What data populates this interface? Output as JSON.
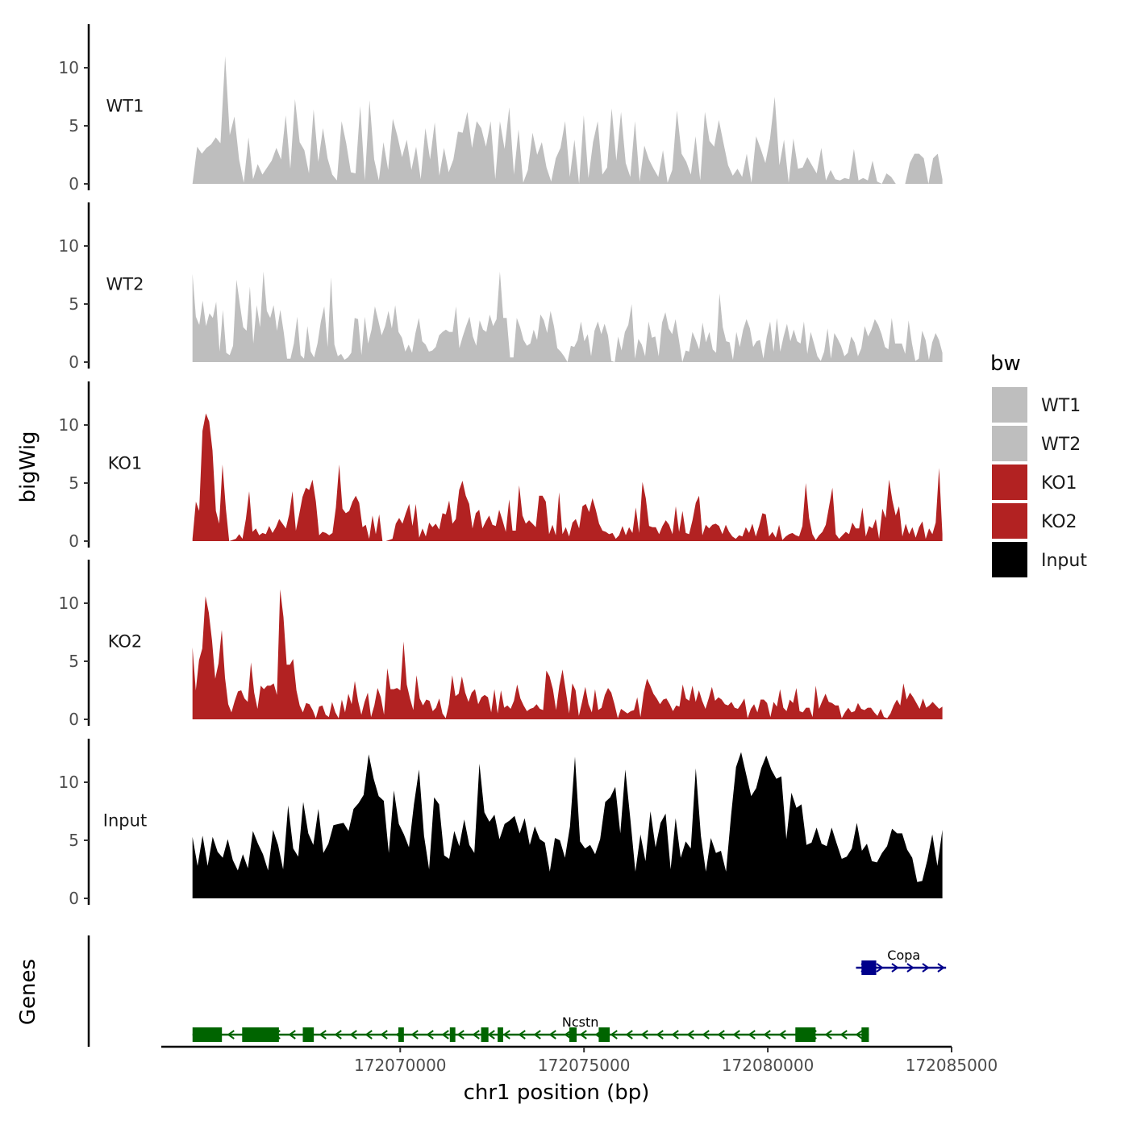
{
  "chart_data": {
    "type": "area",
    "ylabel": "bigWig",
    "xlabel": "chr1 position (bp)",
    "genes_label": "Genes",
    "xlim": [
      172063500,
      172085000
    ],
    "x_ticks": [
      {
        "value": 172070000,
        "label": "172070000"
      },
      {
        "value": 172075000,
        "label": "172075000"
      },
      {
        "value": 172080000,
        "label": "172080000"
      },
      {
        "value": 172085000,
        "label": "172085000"
      }
    ],
    "ylim": [
      0,
      13.5
    ],
    "y_ticks": [
      {
        "value": 0,
        "label": "0"
      },
      {
        "value": 5,
        "label": "5"
      },
      {
        "value": 10,
        "label": "10"
      }
    ],
    "legend": {
      "title": "bw",
      "entries": [
        {
          "label": "WT1",
          "color": "#bebebe"
        },
        {
          "label": "WT2",
          "color": "#bebebe"
        },
        {
          "label": "KO1",
          "color": "#b22222"
        },
        {
          "label": "KO2",
          "color": "#b22222"
        },
        {
          "label": "Input",
          "color": "#000000"
        }
      ]
    },
    "x_start": 172064350,
    "x_end": 172084750,
    "series": [
      {
        "name": "WT1",
        "color": "#bebebe",
        "values": [
          0,
          3.2,
          2.6,
          3.1,
          3.4,
          4,
          3.5,
          11,
          4.2,
          5.8,
          2.1,
          0.1,
          4,
          0.4,
          1.7,
          0.8,
          1.4,
          2,
          3.1,
          2.1,
          5.9,
          1.3,
          7.3,
          3.6,
          2.9,
          0.9,
          6.4,
          1.9,
          4.8,
          2.2,
          0.8,
          0.3,
          5.4,
          3.5,
          1,
          0.9,
          6.7,
          0.3,
          7.2,
          2.1,
          0.3,
          3.6,
          1.2,
          5.6,
          4.1,
          2.3,
          3.8,
          1.2,
          3.2,
          0.4,
          4.8,
          2.1,
          5.3,
          0.7,
          3.1,
          1,
          2.1,
          4.5,
          4.4,
          6.2,
          3.1,
          5.4,
          4.8,
          3.2,
          5.4,
          0.4,
          5.4,
          3,
          6.6,
          0.8,
          4.7,
          0.1,
          1.2,
          4.4,
          2.5,
          3.6,
          1.4,
          0.2,
          2.2,
          3.1,
          5.4,
          0.6,
          3.8,
          0,
          5.9,
          0.5,
          3.6,
          5.4,
          0.8,
          1.4,
          6.5,
          2,
          6.2,
          1.8,
          0.6,
          5.4,
          0.2,
          3.3,
          2.1,
          1.3,
          0.6,
          2.9,
          0.1,
          1.2,
          6.3,
          2.6,
          1.9,
          0.8,
          4.1,
          0.3,
          6.2,
          3.7,
          3.2,
          5.5,
          3.5,
          1.6,
          0.7,
          1.3,
          0.6,
          2.6,
          0.1,
          4.1,
          3,
          1.8,
          3.9,
          7.5,
          1.6,
          3.8,
          0.1,
          3.9,
          1.3,
          1.4,
          2.3,
          1.6,
          0.9,
          3.1,
          0.3,
          1.2,
          0.4,
          0.3,
          0.5,
          0.4,
          3,
          0.3,
          0.5,
          0.3,
          2,
          0.2,
          0,
          0.9,
          0.6,
          0,
          0,
          0,
          1.8,
          2.6,
          2.6,
          2.2,
          0,
          2.2,
          2.6,
          0.4
        ]
      },
      {
        "name": "WT2",
        "color": "#bebebe",
        "values": [
          7.6,
          3.9,
          3.2,
          5.3,
          3.1,
          4.2,
          3.8,
          5.2,
          0.9,
          4.5,
          0.8,
          0.6,
          1.4,
          7.1,
          5,
          3,
          2.7,
          6.5,
          1.6,
          4.9,
          3,
          7.8,
          4.4,
          3.8,
          4.9,
          2.7,
          4.5,
          2.6,
          0.3,
          0.3,
          1.6,
          3.9,
          0.6,
          0.3,
          3.1,
          0.9,
          0.4,
          1.6,
          3.5,
          4.8,
          1.3,
          7.3,
          1.5,
          0.5,
          0.7,
          0.2,
          0.4,
          0.8,
          3.8,
          3.7,
          0.6,
          3.9,
          1.6,
          2.8,
          4.8,
          3.6,
          2.3,
          3.1,
          4.4,
          2.9,
          4.9,
          2.6,
          2.1,
          0.9,
          1.5,
          0.8,
          2.5,
          3.8,
          1.8,
          1.5,
          0.9,
          1,
          1.3,
          2.3,
          2.6,
          2.8,
          2.6,
          2.6,
          4.8,
          1.2,
          2.2,
          3.1,
          3.9,
          2.2,
          1.4,
          3.6,
          2.8,
          2.6,
          4.1,
          3.1,
          3.7,
          7.8,
          3.8,
          3.8,
          0.4,
          0.4,
          3.8,
          3,
          1.9,
          1.4,
          1.6,
          2.8,
          1.9,
          4.1,
          3.6,
          2.5,
          4.4,
          3.1,
          1.2,
          0.9,
          0.5,
          0,
          1.4,
          1.3,
          1.9,
          3.5,
          1.8,
          2.4,
          0.5,
          2.7,
          3.5,
          2.4,
          3.3,
          2.3,
          0.1,
          0,
          2.2,
          1,
          2.6,
          3.2,
          5,
          0.3,
          2,
          1.5,
          0.5,
          3.5,
          2.1,
          2.2,
          0.5,
          3.4,
          4.3,
          2.9,
          2.4,
          3.7,
          1.9,
          0,
          1,
          0.9,
          2.6,
          1.9,
          1.1,
          3.4,
          1.7,
          2.6,
          1.1,
          0.8,
          5.9,
          3,
          1.8,
          1.7,
          0.2,
          2.6,
          1.3,
          2.8,
          3.7,
          2.9,
          1.3,
          1.8,
          1.9,
          0.3,
          2.2,
          3.5,
          0.9,
          3.8,
          0.9,
          2.2,
          3.3,
          1.8,
          2.8,
          1.8,
          1.6,
          3.5,
          0.7,
          2.6,
          1.6,
          0.5,
          0.1,
          0.9,
          2.9,
          0.3,
          2.5,
          2,
          1.4,
          0.5,
          0.8,
          2.2,
          1.7,
          0.5,
          1.2,
          3.1,
          2.2,
          2.8,
          3.7,
          3.2,
          2.4,
          1.3,
          1.1,
          3.8,
          1.6,
          1.6,
          1.6,
          0.7,
          3.6,
          1.6,
          0.1,
          0.3,
          2.7,
          1.9,
          0.2,
          1.7,
          2.5,
          1.9,
          0.8
        ]
      },
      {
        "name": "KO1",
        "color": "#b22222",
        "values": [
          0.2,
          3.4,
          2.6,
          9.5,
          11,
          10.3,
          7.8,
          2.6,
          1.5,
          6.6,
          2.8,
          0,
          0.1,
          0.2,
          0.6,
          0.2,
          1.9,
          4.3,
          0.8,
          1.1,
          0.5,
          0.7,
          0.6,
          1.3,
          0.7,
          1.2,
          1.9,
          1.5,
          1.1,
          2.3,
          4.3,
          0.9,
          2.3,
          3.8,
          4.6,
          4.4,
          5.3,
          3.4,
          0.5,
          0.8,
          0.7,
          0.5,
          0.7,
          2.9,
          6.6,
          2.8,
          2.4,
          2.6,
          3.4,
          3.9,
          3.3,
          1.2,
          1.4,
          0.2,
          2.2,
          0.6,
          2.3,
          0,
          0,
          0.1,
          0.2,
          1.5,
          2,
          1.5,
          2.4,
          3.2,
          1.3,
          3.2,
          0.3,
          1.1,
          0.4,
          1.6,
          1.2,
          1.5,
          1,
          2.4,
          2.3,
          3.5,
          1.5,
          1.9,
          4.4,
          5.2,
          3.9,
          3.2,
          1.1,
          2.4,
          2.7,
          1.1,
          1.7,
          2.2,
          1.4,
          1.3,
          2.7,
          1.8,
          0.8,
          3.6,
          0.9,
          0.9,
          4.8,
          2.2,
          1.5,
          1.8,
          1.5,
          1.2,
          3.9,
          3.9,
          3.4,
          0.6,
          1.4,
          0.5,
          4.2,
          0.6,
          1.2,
          0.4,
          1.6,
          1.9,
          1.1,
          3,
          3.2,
          2.5,
          3.7,
          2.7,
          1.5,
          0.9,
          0.8,
          0.6,
          0.7,
          0.2,
          0.5,
          1.3,
          0.5,
          1.2,
          0.7,
          2.9,
          0.7,
          5.1,
          3.7,
          1.3,
          1.2,
          1.2,
          0.6,
          1.3,
          1.8,
          1.4,
          0.6,
          3,
          0.8,
          2.6,
          0.7,
          0.6,
          1.8,
          3.3,
          3.9,
          0.5,
          1.4,
          1.1,
          1.4,
          1.5,
          1.3,
          0.6,
          1.4,
          0.8,
          0.4,
          0.2,
          0.5,
          0.4,
          1.2,
          0.7,
          1.5,
          0.4,
          1.3,
          2.4,
          2.3,
          0.4,
          0.8,
          0.3,
          1.4,
          0.1,
          0.4,
          0.6,
          0.7,
          0.5,
          0.4,
          1.3,
          5,
          2,
          0.6,
          0.1,
          0.5,
          0.8,
          1.4,
          3,
          4.6,
          0.6,
          0.2,
          0.5,
          0.8,
          0.6,
          1.6,
          1.1,
          1.1,
          2.9,
          0.4,
          1.3,
          1.1,
          1.9,
          0.2,
          2.8,
          2,
          5.3,
          3.5,
          2.2,
          3,
          0.4,
          1.5,
          0.6,
          1.2,
          0.3,
          1.2,
          1.7,
          0.2,
          1.1,
          0.6,
          1.6,
          6.3,
          0.6
        ]
      },
      {
        "name": "KO2",
        "color": "#b22222",
        "values": [
          6.2,
          2.5,
          5.1,
          6.1,
          10.6,
          9.2,
          6.8,
          3.5,
          4.8,
          7.7,
          3.6,
          1.3,
          0.6,
          1.6,
          2.4,
          2.5,
          1.8,
          1.5,
          4.9,
          2.3,
          0.9,
          2.9,
          2.6,
          2.9,
          2.9,
          3.1,
          2.1,
          11.2,
          8.8,
          4.7,
          4.7,
          5.2,
          2.5,
          1.2,
          0.6,
          1.4,
          1.3,
          0.8,
          0.1,
          1.1,
          1.2,
          0.4,
          0.2,
          1.5,
          0.6,
          0.1,
          1.7,
          0.6,
          2.2,
          1.3,
          3.3,
          1.6,
          0.4,
          1.5,
          2.3,
          0.2,
          1.2,
          2.7,
          1.9,
          0.4,
          4.4,
          2.6,
          2.6,
          2.7,
          2.5,
          6.7,
          3,
          1.8,
          0.8,
          3.8,
          1.8,
          1.2,
          1.7,
          1.6,
          0.7,
          1,
          1.8,
          0.5,
          0.1,
          1.3,
          3.8,
          2,
          2.2,
          3.7,
          2.3,
          1.5,
          2.3,
          2.6,
          1.3,
          1.9,
          2.1,
          1.9,
          0.6,
          2.6,
          0.5,
          2.5,
          1,
          1.2,
          0.9,
          1.6,
          3,
          1.8,
          1.2,
          0.7,
          0.9,
          1,
          1.3,
          0.9,
          0.8,
          4.2,
          3.7,
          2.6,
          0.8,
          2.9,
          4.3,
          2.4,
          0.5,
          3.1,
          2.5,
          0.3,
          1.5,
          2.8,
          1.3,
          0.6,
          2.6,
          0.8,
          1,
          2.1,
          2.7,
          2.3,
          1.3,
          0.1,
          0.9,
          0.7,
          0.5,
          0.7,
          0.8,
          1.9,
          0.2,
          2.3,
          3.5,
          2.9,
          2.2,
          1.8,
          1.3,
          1.7,
          1.8,
          1.3,
          0.7,
          1.2,
          1.1,
          3,
          1.8,
          1.6,
          2.9,
          1.5,
          2.5,
          1.6,
          0.9,
          1.8,
          2.8,
          1.6,
          1.9,
          1.7,
          1.3,
          1.2,
          1.5,
          1,
          0.9,
          1.3,
          1.8,
          0.1,
          0.9,
          1.3,
          0.6,
          1.7,
          1.7,
          1.4,
          0.2,
          1.5,
          1.1,
          2.6,
          1,
          0.7,
          1.7,
          1.4,
          2.7,
          0.7,
          0.6,
          1,
          1,
          0.2,
          2.9,
          0.9,
          1.6,
          2.2,
          1.5,
          1.4,
          1.2,
          1.2,
          0.1,
          0.6,
          1,
          0.6,
          0.7,
          1.4,
          0.9,
          0.8,
          1,
          1,
          0.6,
          0.3,
          0.9,
          0.2,
          0.1,
          0.5,
          1.2,
          1.7,
          1.2,
          3.1,
          1.7,
          2.3,
          1.9,
          1.4,
          0.9,
          1.8,
          1,
          1.2,
          1.5,
          1.2,
          0.9,
          1.1
        ]
      },
      {
        "name": "Input",
        "color": "#000000",
        "values": [
          5.3,
          2.8,
          5.4,
          2.8,
          5.3,
          4,
          3.5,
          5.1,
          3.3,
          2.4,
          3.8,
          2.6,
          5.8,
          4.7,
          3.8,
          2.4,
          5.9,
          4.6,
          2.5,
          8,
          4.3,
          3.6,
          8.3,
          5.6,
          4.6,
          7.7,
          3.9,
          4.7,
          6.3,
          6.4,
          6.5,
          5.8,
          7.7,
          8.2,
          8.9,
          12.4,
          10.3,
          8.8,
          8.4,
          3.9,
          9.3,
          6.4,
          5.5,
          4.4,
          8.1,
          11.1,
          5.4,
          2.5,
          8.7,
          8.1,
          3.7,
          3.4,
          5.8,
          4.5,
          6.8,
          4.6,
          3.9,
          11.6,
          7.4,
          6.6,
          7.2,
          5.1,
          6.4,
          6.7,
          7.1,
          5.6,
          6.9,
          4.6,
          6.2,
          5.1,
          4.8,
          2.3,
          5.2,
          5,
          3.5,
          6.2,
          12.2,
          4.9,
          4.3,
          4.6,
          3.8,
          5.1,
          8.3,
          8.7,
          9.6,
          5.6,
          11.1,
          6.8,
          2.3,
          5.5,
          3.2,
          7.5,
          4.4,
          6.5,
          7.3,
          2.5,
          6.9,
          3.5,
          4.9,
          4.3,
          11.2,
          5.4,
          2.3,
          5.2,
          3.9,
          4.1,
          2.3,
          7.1,
          11.3,
          12.6,
          10.7,
          8.8,
          9.5,
          11.2,
          12.3,
          11.1,
          10.3,
          10.5,
          5.1,
          9.1,
          7.8,
          8.1,
          4.6,
          4.8,
          6.1,
          4.7,
          4.5,
          6.1,
          4.7,
          3.4,
          3.6,
          4.3,
          6.5,
          4.1,
          4.7,
          3.2,
          3.1,
          3.9,
          4.5,
          6,
          5.6,
          5.6,
          4.2,
          3.5,
          1.4,
          1.5,
          3.3,
          5.5,
          2.8,
          5.9
        ]
      }
    ],
    "genes": [
      {
        "name": "Ncstn",
        "color": "#006400",
        "strand": "-",
        "start": 172064350,
        "end": 172082750,
        "exons": [
          {
            "start": 172064350,
            "end": 172065150
          },
          {
            "start": 172065700,
            "end": 172066700
          },
          {
            "start": 172067350,
            "end": 172067650
          },
          {
            "start": 172069950,
            "end": 172070100
          },
          {
            "start": 172071350,
            "end": 172071500
          },
          {
            "start": 172072200,
            "end": 172072400
          },
          {
            "start": 172072650,
            "end": 172072800
          },
          {
            "start": 172074600,
            "end": 172074800
          },
          {
            "start": 172075400,
            "end": 172075700
          },
          {
            "start": 172080750,
            "end": 172081300
          },
          {
            "start": 172082550,
            "end": 172082750
          }
        ]
      },
      {
        "name": "Copa",
        "color": "#00008b",
        "strand": "+",
        "start": 172082400,
        "end": 172084850,
        "exons": [
          {
            "start": 172082550,
            "end": 172082950
          }
        ]
      }
    ]
  }
}
